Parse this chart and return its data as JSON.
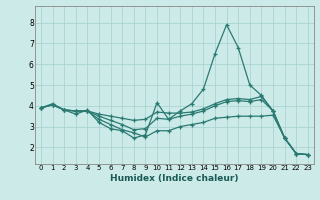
{
  "title": "",
  "xlabel": "Humidex (Indice chaleur)",
  "ylabel": "",
  "background_color": "#cceae8",
  "grid_color": "#aad4d2",
  "line_color": "#2a7a72",
  "spine_color": "#888888",
  "xlim": [
    -0.5,
    23.5
  ],
  "ylim": [
    1.2,
    8.8
  ],
  "xticks": [
    0,
    1,
    2,
    3,
    4,
    5,
    6,
    7,
    8,
    9,
    10,
    11,
    12,
    13,
    14,
    15,
    16,
    17,
    18,
    19,
    20,
    21,
    22,
    23
  ],
  "yticks": [
    2,
    3,
    4,
    5,
    6,
    7,
    8
  ],
  "xlabel_fontsize": 6.5,
  "xlabel_color": "#1a5a55",
  "tick_fontsize": 5.0,
  "lines": [
    [
      3.9,
      4.1,
      3.8,
      3.6,
      3.8,
      3.2,
      2.9,
      2.8,
      2.45,
      2.6,
      4.15,
      3.35,
      3.75,
      4.1,
      4.8,
      6.5,
      7.9,
      6.8,
      5.0,
      4.5,
      3.75,
      2.45,
      1.7,
      1.65
    ],
    [
      3.9,
      4.05,
      3.8,
      3.75,
      3.75,
      3.6,
      3.5,
      3.4,
      3.3,
      3.35,
      3.7,
      3.65,
      3.65,
      3.7,
      3.85,
      4.1,
      4.3,
      4.35,
      4.3,
      4.45,
      3.75,
      2.45,
      1.7,
      1.65
    ],
    [
      3.9,
      4.05,
      3.8,
      3.75,
      3.75,
      3.5,
      3.3,
      3.1,
      2.85,
      2.9,
      3.4,
      3.35,
      3.5,
      3.6,
      3.75,
      4.0,
      4.2,
      4.25,
      4.2,
      4.3,
      3.75,
      2.45,
      1.7,
      1.65
    ],
    [
      3.9,
      4.05,
      3.8,
      3.75,
      3.75,
      3.35,
      3.1,
      2.85,
      2.7,
      2.5,
      2.8,
      2.8,
      3.0,
      3.1,
      3.2,
      3.4,
      3.45,
      3.5,
      3.5,
      3.5,
      3.55,
      2.45,
      1.7,
      1.65
    ]
  ],
  "linewidth": 0.9,
  "markersize": 3.5,
  "markeredgewidth": 0.9
}
